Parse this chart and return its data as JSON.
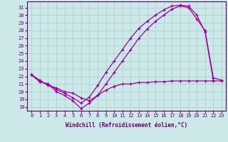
{
  "xlabel": "Windchill (Refroidissement éolien,°C)",
  "bg_color": "#cde8e8",
  "line_color": "#990099",
  "grid_color": "#aacccc",
  "ylim": [
    17.5,
    31.8
  ],
  "xlim": [
    -0.5,
    23.5
  ],
  "yticks": [
    18,
    19,
    20,
    21,
    22,
    23,
    24,
    25,
    26,
    27,
    28,
    29,
    30,
    31
  ],
  "xticks": [
    0,
    1,
    2,
    3,
    4,
    5,
    6,
    7,
    8,
    9,
    10,
    11,
    12,
    13,
    14,
    15,
    16,
    17,
    18,
    19,
    20,
    21,
    22,
    23
  ],
  "line1_x": [
    0,
    1,
    2,
    3,
    4,
    5,
    6,
    7,
    8,
    9,
    10,
    11,
    12,
    13,
    14,
    15,
    16,
    17,
    18,
    19,
    20,
    21,
    22
  ],
  "line1_y": [
    22.2,
    21.3,
    21.0,
    20.3,
    19.8,
    19.2,
    18.5,
    19.3,
    20.8,
    22.5,
    24.0,
    25.5,
    27.0,
    28.3,
    29.2,
    30.0,
    30.7,
    31.2,
    31.3,
    31.2,
    30.0,
    27.8,
    21.5
  ],
  "line2_x": [
    0,
    1,
    2,
    3,
    4,
    5,
    6,
    7,
    8,
    9,
    10,
    11,
    12,
    13,
    14,
    15,
    16,
    17,
    18,
    19,
    20,
    21,
    22,
    23
  ],
  "line2_y": [
    22.2,
    21.3,
    21.0,
    20.0,
    19.5,
    18.8,
    17.8,
    18.5,
    19.5,
    21.0,
    22.5,
    24.0,
    25.5,
    27.0,
    28.2,
    29.2,
    30.0,
    30.8,
    31.2,
    31.0,
    29.5,
    28.0,
    21.8,
    21.5
  ],
  "line3_x": [
    0,
    1,
    2,
    3,
    4,
    5,
    6,
    7,
    8,
    9,
    10,
    11,
    12,
    13,
    14,
    15,
    16,
    17,
    18,
    19,
    20,
    21,
    22,
    23
  ],
  "line3_y": [
    22.2,
    21.5,
    20.8,
    20.5,
    20.0,
    19.8,
    19.2,
    18.8,
    19.5,
    20.2,
    20.7,
    21.0,
    21.0,
    21.2,
    21.2,
    21.3,
    21.3,
    21.4,
    21.4,
    21.4,
    21.4,
    21.4,
    21.4,
    21.4
  ]
}
